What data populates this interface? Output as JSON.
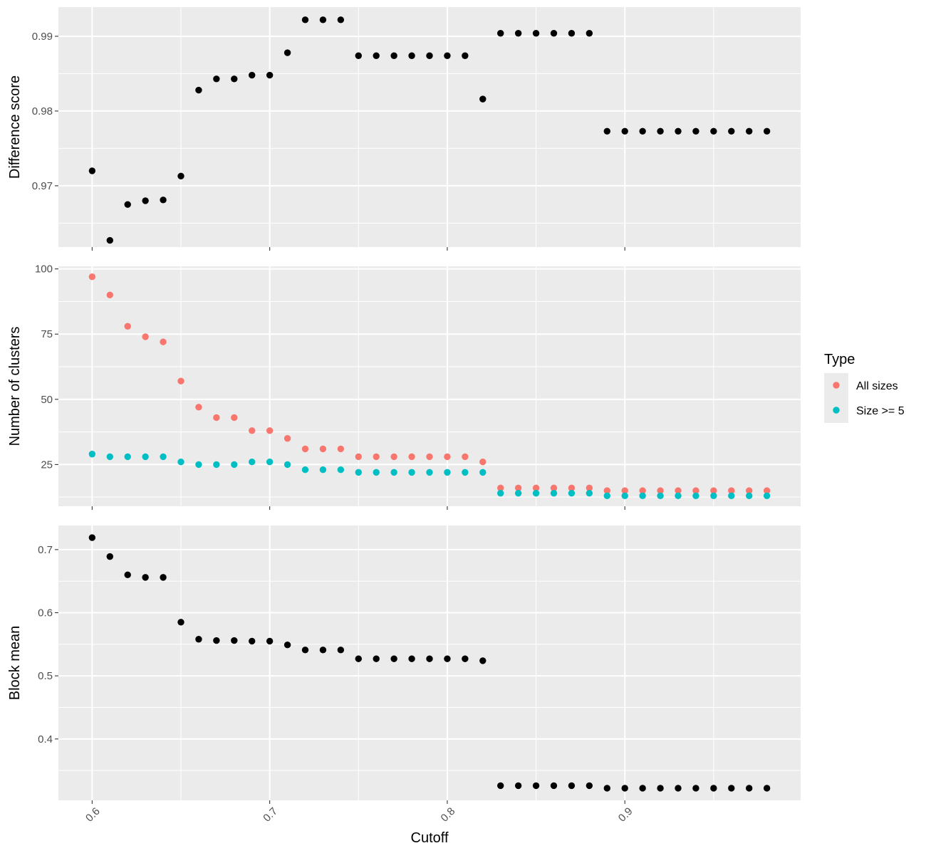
{
  "chart_data": [
    {
      "type": "scatter",
      "ylabel": "Difference score",
      "ylim": [
        0.9618,
        0.9939
      ],
      "y_ticks": [
        0.97,
        0.98,
        0.99
      ],
      "y_tick_labels": [
        "0.97",
        "0.98",
        "0.99"
      ],
      "grid": true,
      "series": [
        {
          "color": "#000000",
          "points": [
            [
              0.6,
              0.972
            ],
            [
              0.61,
              0.9627
            ],
            [
              0.62,
              0.9675
            ],
            [
              0.63,
              0.968
            ],
            [
              0.64,
              0.9681
            ],
            [
              0.65,
              0.9713
            ],
            [
              0.66,
              0.9828
            ],
            [
              0.67,
              0.9843
            ],
            [
              0.68,
              0.9843
            ],
            [
              0.69,
              0.9848
            ],
            [
              0.7,
              0.9848
            ],
            [
              0.71,
              0.9878
            ],
            [
              0.72,
              0.9922
            ],
            [
              0.73,
              0.9922
            ],
            [
              0.74,
              0.9922
            ],
            [
              0.75,
              0.9874
            ],
            [
              0.76,
              0.9874
            ],
            [
              0.77,
              0.9874
            ],
            [
              0.78,
              0.9874
            ],
            [
              0.79,
              0.9874
            ],
            [
              0.8,
              0.9874
            ],
            [
              0.81,
              0.9874
            ],
            [
              0.82,
              0.9816
            ],
            [
              0.83,
              0.9904
            ],
            [
              0.84,
              0.9904
            ],
            [
              0.85,
              0.9904
            ],
            [
              0.86,
              0.9904
            ],
            [
              0.87,
              0.9904
            ],
            [
              0.88,
              0.9904
            ],
            [
              0.89,
              0.9773
            ],
            [
              0.9,
              0.9773
            ],
            [
              0.91,
              0.9773
            ],
            [
              0.92,
              0.9773
            ],
            [
              0.93,
              0.9773
            ],
            [
              0.94,
              0.9773
            ],
            [
              0.95,
              0.9773
            ],
            [
              0.96,
              0.9773
            ],
            [
              0.97,
              0.9773
            ],
            [
              0.98,
              0.9773
            ]
          ]
        }
      ]
    },
    {
      "type": "scatter",
      "ylabel": "Number of clusters",
      "ylim": [
        9.0,
        101.0
      ],
      "y_ticks": [
        25,
        50,
        75,
        100
      ],
      "y_tick_labels": [
        "25",
        "50",
        "75",
        "100"
      ],
      "grid": true,
      "legend": {
        "title": "Type",
        "position": "right"
      },
      "series": [
        {
          "name": "All sizes",
          "color": "#F8766D",
          "points": [
            [
              0.6,
              97
            ],
            [
              0.61,
              90
            ],
            [
              0.62,
              78
            ],
            [
              0.63,
              74
            ],
            [
              0.64,
              72
            ],
            [
              0.65,
              57
            ],
            [
              0.66,
              47
            ],
            [
              0.67,
              43
            ],
            [
              0.68,
              43
            ],
            [
              0.69,
              38
            ],
            [
              0.7,
              38
            ],
            [
              0.71,
              35
            ],
            [
              0.72,
              31
            ],
            [
              0.73,
              31
            ],
            [
              0.74,
              31
            ],
            [
              0.75,
              28
            ],
            [
              0.76,
              28
            ],
            [
              0.77,
              28
            ],
            [
              0.78,
              28
            ],
            [
              0.79,
              28
            ],
            [
              0.8,
              28
            ],
            [
              0.81,
              28
            ],
            [
              0.82,
              26
            ],
            [
              0.83,
              16
            ],
            [
              0.84,
              16
            ],
            [
              0.85,
              16
            ],
            [
              0.86,
              16
            ],
            [
              0.87,
              16
            ],
            [
              0.88,
              16
            ],
            [
              0.89,
              15
            ],
            [
              0.9,
              15
            ],
            [
              0.91,
              15
            ],
            [
              0.92,
              15
            ],
            [
              0.93,
              15
            ],
            [
              0.94,
              15
            ],
            [
              0.95,
              15
            ],
            [
              0.96,
              15
            ],
            [
              0.97,
              15
            ],
            [
              0.98,
              15
            ]
          ]
        },
        {
          "name": "Size >= 5",
          "color": "#00BFC4",
          "points": [
            [
              0.6,
              29
            ],
            [
              0.61,
              28
            ],
            [
              0.62,
              28
            ],
            [
              0.63,
              28
            ],
            [
              0.64,
              28
            ],
            [
              0.65,
              26
            ],
            [
              0.66,
              25
            ],
            [
              0.67,
              25
            ],
            [
              0.68,
              25
            ],
            [
              0.69,
              26
            ],
            [
              0.7,
              26
            ],
            [
              0.71,
              25
            ],
            [
              0.72,
              23
            ],
            [
              0.73,
              23
            ],
            [
              0.74,
              23
            ],
            [
              0.75,
              22
            ],
            [
              0.76,
              22
            ],
            [
              0.77,
              22
            ],
            [
              0.78,
              22
            ],
            [
              0.79,
              22
            ],
            [
              0.8,
              22
            ],
            [
              0.81,
              22
            ],
            [
              0.82,
              22
            ],
            [
              0.83,
              14
            ],
            [
              0.84,
              14
            ],
            [
              0.85,
              14
            ],
            [
              0.86,
              14
            ],
            [
              0.87,
              14
            ],
            [
              0.88,
              14
            ],
            [
              0.89,
              13
            ],
            [
              0.9,
              13
            ],
            [
              0.91,
              13
            ],
            [
              0.92,
              13
            ],
            [
              0.93,
              13
            ],
            [
              0.94,
              13
            ],
            [
              0.95,
              13
            ],
            [
              0.96,
              13
            ],
            [
              0.97,
              13
            ],
            [
              0.98,
              13
            ]
          ]
        }
      ]
    },
    {
      "type": "scatter",
      "ylabel": "Block mean",
      "xlabel": "Cutoff",
      "ylim": [
        0.3028,
        0.7382
      ],
      "y_ticks": [
        0.4,
        0.5,
        0.6,
        0.7
      ],
      "y_tick_labels": [
        "0.4",
        "0.5",
        "0.6",
        "0.7"
      ],
      "grid": true,
      "series": [
        {
          "color": "#000000",
          "points": [
            [
              0.6,
              0.719
            ],
            [
              0.61,
              0.689
            ],
            [
              0.62,
              0.66
            ],
            [
              0.63,
              0.656
            ],
            [
              0.64,
              0.656
            ],
            [
              0.65,
              0.585
            ],
            [
              0.66,
              0.558
            ],
            [
              0.67,
              0.556
            ],
            [
              0.68,
              0.556
            ],
            [
              0.69,
              0.555
            ],
            [
              0.7,
              0.555
            ],
            [
              0.71,
              0.549
            ],
            [
              0.72,
              0.541
            ],
            [
              0.73,
              0.541
            ],
            [
              0.74,
              0.541
            ],
            [
              0.75,
              0.527
            ],
            [
              0.76,
              0.527
            ],
            [
              0.77,
              0.527
            ],
            [
              0.78,
              0.527
            ],
            [
              0.79,
              0.527
            ],
            [
              0.8,
              0.527
            ],
            [
              0.81,
              0.527
            ],
            [
              0.82,
              0.524
            ],
            [
              0.83,
              0.326
            ],
            [
              0.84,
              0.326
            ],
            [
              0.85,
              0.326
            ],
            [
              0.86,
              0.326
            ],
            [
              0.87,
              0.326
            ],
            [
              0.88,
              0.326
            ],
            [
              0.89,
              0.322
            ],
            [
              0.9,
              0.322
            ],
            [
              0.91,
              0.322
            ],
            [
              0.92,
              0.322
            ],
            [
              0.93,
              0.322
            ],
            [
              0.94,
              0.322
            ],
            [
              0.95,
              0.322
            ],
            [
              0.96,
              0.322
            ],
            [
              0.97,
              0.322
            ],
            [
              0.98,
              0.322
            ]
          ]
        }
      ]
    }
  ],
  "shared_x": {
    "xlabel": "Cutoff",
    "xlim": [
      0.581,
      0.999
    ],
    "x_ticks": [
      0.6,
      0.7,
      0.8,
      0.9
    ],
    "x_tick_labels": [
      "0.6",
      "0.7",
      "0.8",
      "0.9"
    ]
  },
  "legend": {
    "title": "Type",
    "items": [
      {
        "label": "All sizes",
        "color": "#F8766D"
      },
      {
        "label": "Size >= 5",
        "color": "#00BFC4"
      }
    ]
  }
}
